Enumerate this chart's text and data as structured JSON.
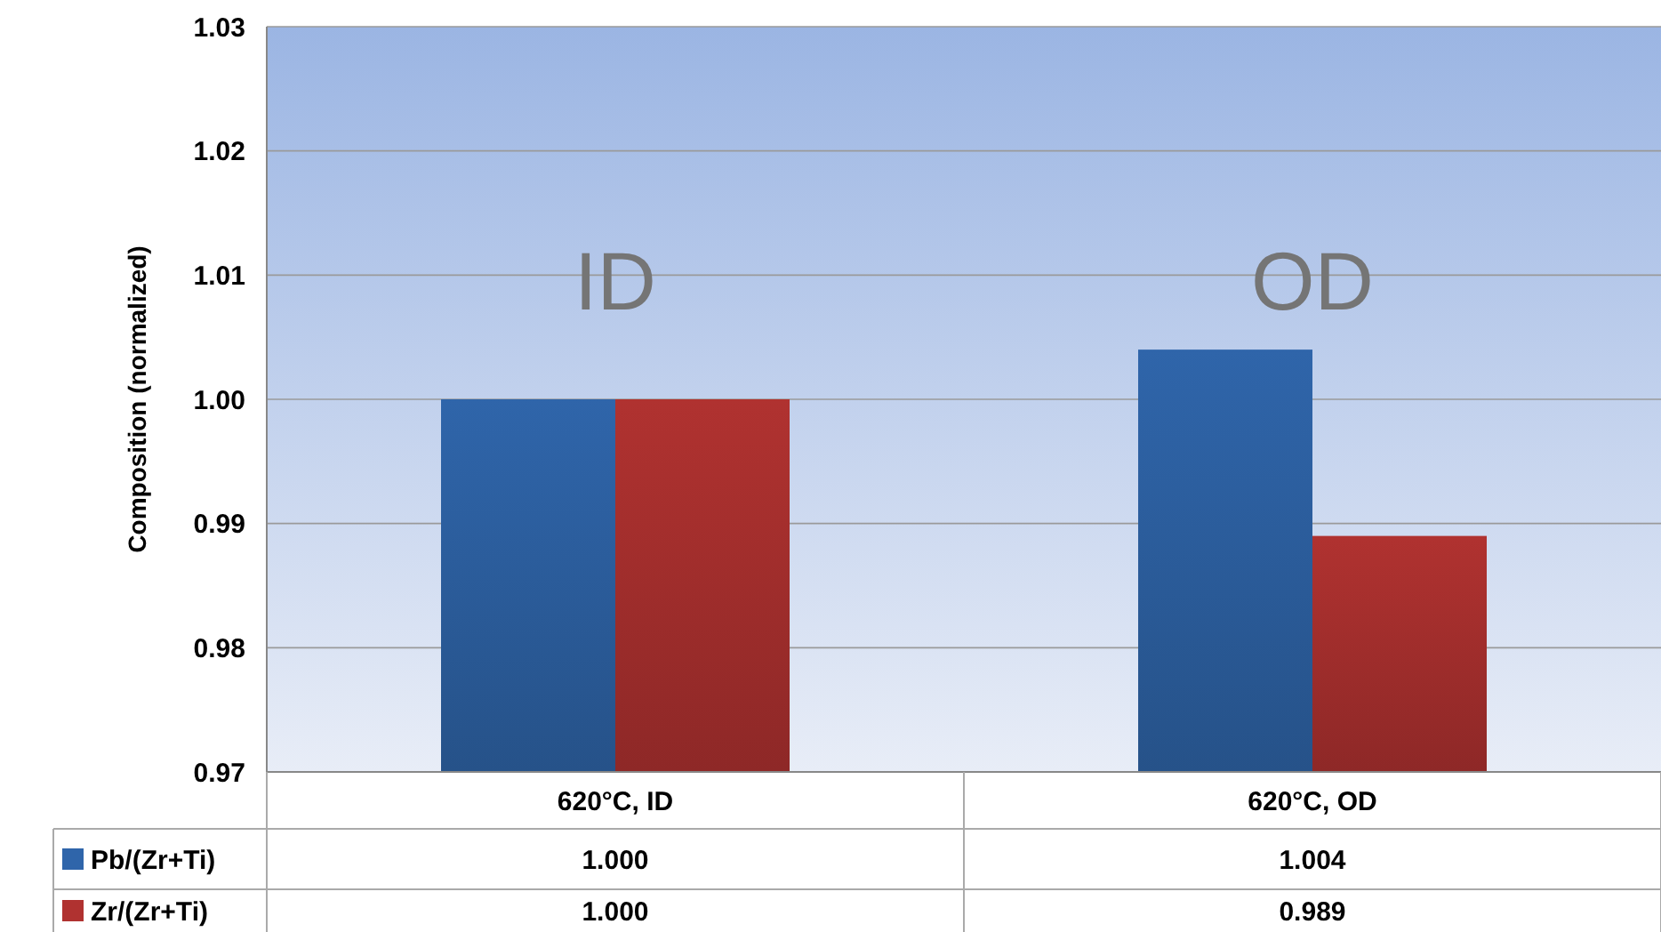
{
  "chart_data": {
    "type": "bar",
    "ylabel": "Composition (normalized)",
    "categories": [
      "620°C, ID",
      "620°C, OD"
    ],
    "series": [
      {
        "name": "Pb/(Zr+Ti)",
        "color": "#2f65aa",
        "values": [
          1.0,
          1.004
        ]
      },
      {
        "name": "Zr/(Zr+Ti)",
        "color": "#b03230",
        "values": [
          1.0,
          0.989
        ]
      }
    ],
    "ylim": [
      0.97,
      1.03
    ],
    "yticks": [
      {
        "value": 0.97,
        "label": "0.97"
      },
      {
        "value": 0.98,
        "label": "0.98"
      },
      {
        "value": 0.99,
        "label": "0.99"
      },
      {
        "value": 1.0,
        "label": "1.00"
      },
      {
        "value": 1.01,
        "label": "1.01"
      },
      {
        "value": 1.02,
        "label": "1.02"
      },
      {
        "value": 1.03,
        "label": "1.03"
      }
    ],
    "grid": "y",
    "legend": "bottom",
    "value_labels": [
      [
        "1.000",
        "1.004"
      ],
      [
        "1.000",
        "0.989"
      ]
    ],
    "annotations": [
      "ID",
      "OD"
    ]
  }
}
